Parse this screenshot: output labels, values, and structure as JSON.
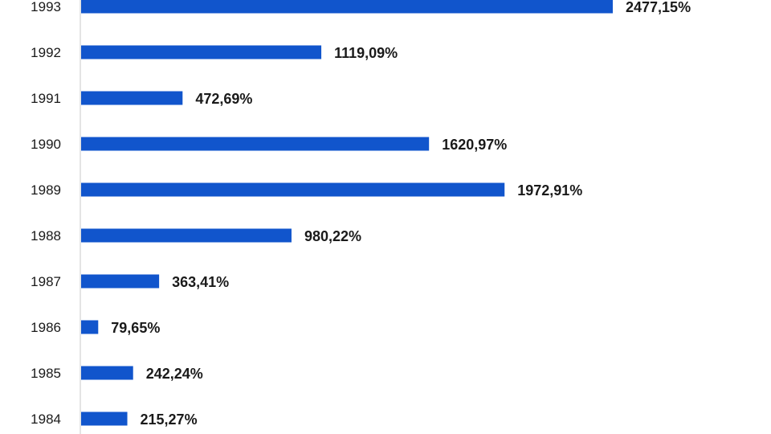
{
  "chart_data": {
    "type": "bar",
    "orientation": "horizontal",
    "categories": [
      "1993",
      "1992",
      "1991",
      "1990",
      "1989",
      "1988",
      "1987",
      "1986",
      "1985",
      "1984"
    ],
    "values": [
      2477.15,
      1119.09,
      472.69,
      1620.97,
      1972.91,
      980.22,
      363.41,
      79.65,
      242.24,
      215.27
    ],
    "value_labels": [
      "2477,15%",
      "1119,09%",
      "472,69%",
      "1620,97%",
      "1972,91%",
      "980,22%",
      "363,41%",
      "79,65%",
      "242,24%",
      "215,27%"
    ],
    "title": "",
    "xlabel": "",
    "ylabel": "",
    "xlim": [
      0,
      2477.15
    ],
    "grid": false,
    "legend": "none",
    "bar_color": "#1155CC"
  }
}
